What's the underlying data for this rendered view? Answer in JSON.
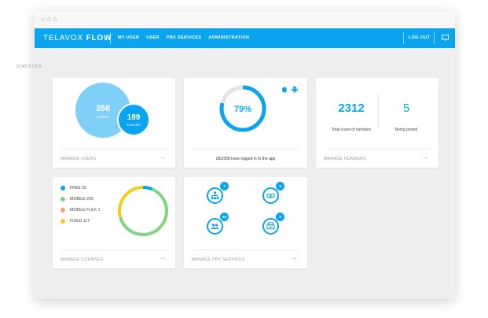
{
  "app": {
    "brand_light": "TELAVOX ",
    "brand_bold": "FLOW",
    "nav": [
      "MY USER",
      "USER",
      "PBX SERVICES",
      "ADMINISTRATION"
    ],
    "logout_label": "LOG OUT"
  },
  "colors": {
    "brand": "#0aa5f0",
    "light_blue": "#7fd0f8",
    "green": "#7fd67f",
    "salmon": "#f2a07c",
    "yellow": "#f4cc22"
  },
  "statistics": {
    "section_title": "STATISTICS",
    "users": {
      "users_count": "358",
      "users_label": "USERS",
      "admins_count": "189",
      "admins_label": "ADMINS",
      "footer": "MANAGE USERS"
    },
    "app_login": {
      "percent_label": "79%",
      "percent_value": 0.79,
      "platform_icons": [
        "apple-icon",
        "android-icon"
      ],
      "caption": "282/358 have logged in to the app"
    },
    "numbers": {
      "total": "2312",
      "total_label": "Total count of numbers",
      "ported": "5",
      "ported_label": "Being ported",
      "footer": "MANAGE NUMBERS"
    },
    "licenses": {
      "legend": [
        {
          "label": "FREE 25",
          "value": 25,
          "color": "#0aa5f0"
        },
        {
          "label": "MOBILE 255",
          "value": 255,
          "color": "#7fd67f"
        },
        {
          "label": "MOBILE FLEX 1",
          "value": 1,
          "color": "#f2a07c"
        },
        {
          "label": "FIXED 117",
          "value": 117,
          "color": "#f4cc22"
        }
      ],
      "footer": "MANAGE LICENSES"
    },
    "pbx": {
      "services": [
        {
          "icon": "org-chart-icon",
          "badge": "7"
        },
        {
          "icon": "voicemail-icon",
          "badge": "3"
        },
        {
          "icon": "group-icon",
          "badge": "94"
        },
        {
          "icon": "fax-icon",
          "badge": "2"
        }
      ],
      "footer": "MANAGE PBX SERVICES"
    }
  }
}
